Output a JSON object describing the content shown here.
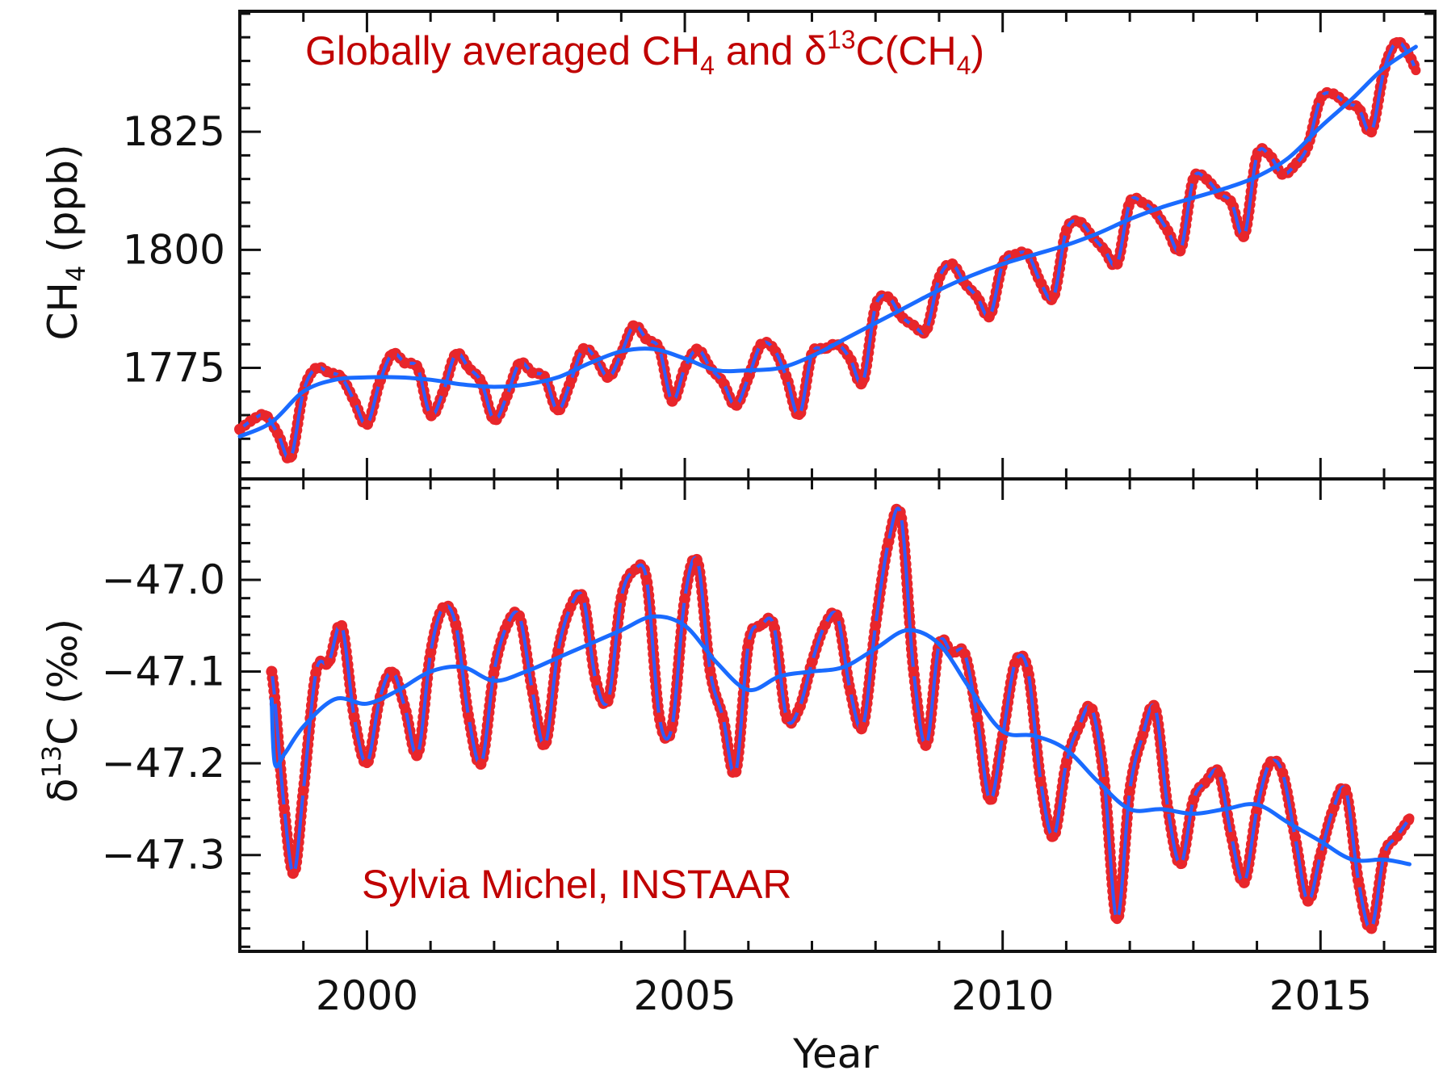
{
  "colors": {
    "observations": "#e8262b",
    "observations_line": "#2f5cff",
    "trend": "#1a6bff",
    "frame": "#111111",
    "annotation": "#c00000"
  },
  "chart_data": [
    {
      "panel": "top",
      "type": "line",
      "title": "Globally averaged CH",
      "title_parts": {
        "main": "Globally averaged CH",
        "sub1": "4",
        "mid": " and δ",
        "sup": "13",
        "mid2": "C(CH",
        "sub2": "4",
        "end": ")"
      },
      "ylabel": "CH",
      "ylabel_sub": "4",
      "ylabel_unit": " (ppb)",
      "yticks": [
        1775,
        1800,
        1825
      ],
      "ytick_labels": [
        "1775",
        "1800",
        "1825"
      ],
      "ylim": [
        1751.5,
        1850.5
      ],
      "xlim": [
        1998.0,
        2016.8
      ],
      "series": [
        {
          "role": "observations",
          "marker": "circle",
          "x": [
            1998.0,
            1998.2,
            1998.4,
            1998.6,
            1998.8,
            1999.0,
            1999.2,
            1999.4,
            1999.6,
            1999.8,
            2000.0,
            2000.2,
            2000.4,
            2000.6,
            2000.8,
            2001.0,
            2001.2,
            2001.4,
            2001.6,
            2001.8,
            2002.0,
            2002.2,
            2002.4,
            2002.6,
            2002.8,
            2003.0,
            2003.2,
            2003.4,
            2003.6,
            2003.8,
            2004.0,
            2004.2,
            2004.4,
            2004.6,
            2004.8,
            2005.0,
            2005.2,
            2005.4,
            2005.6,
            2005.8,
            2006.0,
            2006.2,
            2006.4,
            2006.6,
            2006.8,
            2007.0,
            2007.2,
            2007.4,
            2007.6,
            2007.8,
            2008.0,
            2008.2,
            2008.4,
            2008.6,
            2008.8,
            2009.0,
            2009.2,
            2009.4,
            2009.6,
            2009.8,
            2010.0,
            2010.2,
            2010.4,
            2010.6,
            2010.8,
            2011.0,
            2011.2,
            2011.4,
            2011.6,
            2011.8,
            2012.0,
            2012.2,
            2012.4,
            2012.6,
            2012.8,
            2013.0,
            2013.2,
            2013.4,
            2013.6,
            2013.8,
            2014.0,
            2014.2,
            2014.4,
            2014.6,
            2014.8,
            2015.0,
            2015.2,
            2015.4,
            2015.6,
            2015.8,
            2016.0,
            2016.2,
            2016.4,
            2016.5
          ],
          "y": [
            1762,
            1764,
            1765,
            1761,
            1756,
            1770,
            1775,
            1774,
            1773,
            1768,
            1763,
            1772,
            1778,
            1776,
            1775,
            1765,
            1770,
            1778,
            1775,
            1772,
            1764,
            1769,
            1776,
            1774,
            1773,
            1766,
            1772,
            1779,
            1777,
            1773,
            1778,
            1784,
            1781,
            1779,
            1768,
            1775,
            1779,
            1775,
            1772,
            1767,
            1773,
            1780,
            1779,
            1773,
            1765,
            1778,
            1779,
            1780,
            1777,
            1772,
            1788,
            1790,
            1786,
            1784,
            1783,
            1794,
            1797,
            1793,
            1790,
            1786,
            1797,
            1799,
            1799,
            1793,
            1790,
            1804,
            1806,
            1803,
            1800,
            1797,
            1810,
            1810,
            1808,
            1804,
            1800,
            1815,
            1815,
            1812,
            1810,
            1803,
            1820,
            1820,
            1816,
            1818,
            1822,
            1832,
            1833,
            1831,
            1830,
            1825,
            1838,
            1844,
            1841,
            1838
          ]
        },
        {
          "role": "trend",
          "x": [
            1998.0,
            1998.5,
            1999.0,
            1999.5,
            2000.0,
            2000.5,
            2001.0,
            2001.5,
            2002.0,
            2002.5,
            2003.0,
            2003.5,
            2004.0,
            2004.5,
            2005.0,
            2005.5,
            2006.0,
            2006.5,
            2007.0,
            2007.5,
            2008.0,
            2008.5,
            2009.0,
            2009.5,
            2010.0,
            2010.5,
            2011.0,
            2011.5,
            2012.0,
            2012.5,
            2013.0,
            2013.5,
            2014.0,
            2014.5,
            2015.0,
            2015.5,
            2016.0,
            2016.5
          ],
          "y": [
            1760.5,
            1763.5,
            1770.0,
            1772.5,
            1773.0,
            1773.0,
            1772.5,
            1771.5,
            1771.0,
            1771.5,
            1773.0,
            1776.0,
            1778.5,
            1779.0,
            1777.0,
            1774.5,
            1774.5,
            1775.0,
            1777.5,
            1781.0,
            1784.5,
            1788.0,
            1791.5,
            1794.5,
            1797.0,
            1799.0,
            1801.0,
            1803.5,
            1806.5,
            1809.0,
            1811.0,
            1813.0,
            1815.5,
            1819.5,
            1826.0,
            1832.0,
            1838.5,
            1843.0
          ]
        }
      ]
    },
    {
      "panel": "bottom",
      "type": "line",
      "ylabel": "δ",
      "ylabel_sup": "13",
      "ylabel_rest": "C (‰)",
      "yticks": [
        -47.3,
        -47.2,
        -47.1,
        -47.0
      ],
      "ytick_labels": [
        "−47.3",
        "−47.2",
        "−47.1",
        "−47.0"
      ],
      "ylim": [
        -47.405,
        -46.89
      ],
      "xlim": [
        1998.0,
        2016.8
      ],
      "xticks": [
        2000,
        2005,
        2010,
        2015
      ],
      "xtick_labels": [
        "2000",
        "2005",
        "2010",
        "2015"
      ],
      "xlabel": "Year",
      "annotation": "Sylvia Michel, INSTAAR",
      "series": [
        {
          "role": "observations",
          "marker": "circle",
          "x": [
            1998.5,
            1998.55,
            1998.7,
            1998.85,
            1999.0,
            1999.2,
            1999.4,
            1999.6,
            1999.8,
            2000.0,
            2000.2,
            2000.4,
            2000.6,
            2000.8,
            2001.0,
            2001.2,
            2001.4,
            2001.6,
            2001.8,
            2002.0,
            2002.2,
            2002.4,
            2002.6,
            2002.8,
            2003.0,
            2003.2,
            2003.4,
            2003.6,
            2003.8,
            2004.0,
            2004.2,
            2004.4,
            2004.6,
            2004.8,
            2005.0,
            2005.2,
            2005.4,
            2005.6,
            2005.8,
            2006.0,
            2006.2,
            2006.4,
            2006.6,
            2006.8,
            2007.0,
            2007.2,
            2007.4,
            2007.6,
            2007.8,
            2008.0,
            2008.2,
            2008.4,
            2008.6,
            2008.8,
            2009.0,
            2009.2,
            2009.4,
            2009.6,
            2009.8,
            2010.0,
            2010.2,
            2010.4,
            2010.6,
            2010.8,
            2011.0,
            2011.2,
            2011.4,
            2011.6,
            2011.8,
            2012.0,
            2012.2,
            2012.4,
            2012.6,
            2012.8,
            2013.0,
            2013.2,
            2013.4,
            2013.6,
            2013.8,
            2014.0,
            2014.2,
            2014.4,
            2014.6,
            2014.8,
            2015.0,
            2015.2,
            2015.4,
            2015.6,
            2015.8,
            2016.0,
            2016.2,
            2016.4
          ],
          "y": [
            -47.1,
            -47.13,
            -47.25,
            -47.32,
            -47.23,
            -47.1,
            -47.09,
            -47.05,
            -47.15,
            -47.2,
            -47.13,
            -47.1,
            -47.14,
            -47.19,
            -47.08,
            -47.03,
            -47.05,
            -47.15,
            -47.2,
            -47.1,
            -47.05,
            -47.04,
            -47.12,
            -47.18,
            -47.08,
            -47.03,
            -47.02,
            -47.11,
            -47.13,
            -47.02,
            -46.99,
            -47.0,
            -47.15,
            -47.16,
            -47.02,
            -46.98,
            -47.1,
            -47.15,
            -47.21,
            -47.07,
            -47.05,
            -47.05,
            -47.15,
            -47.14,
            -47.09,
            -47.05,
            -47.04,
            -47.12,
            -47.16,
            -47.05,
            -46.96,
            -46.93,
            -47.1,
            -47.18,
            -47.07,
            -47.08,
            -47.08,
            -47.15,
            -47.24,
            -47.17,
            -47.09,
            -47.1,
            -47.22,
            -47.28,
            -47.2,
            -47.16,
            -47.14,
            -47.22,
            -47.37,
            -47.23,
            -47.17,
            -47.14,
            -47.25,
            -47.31,
            -47.24,
            -47.22,
            -47.21,
            -47.28,
            -47.33,
            -47.25,
            -47.2,
            -47.21,
            -47.28,
            -47.35,
            -47.3,
            -47.25,
            -47.23,
            -47.33,
            -47.38,
            -47.3,
            -47.28,
            -47.26
          ]
        },
        {
          "role": "trend",
          "x": [
            1998.5,
            1998.55,
            1998.7,
            1999.0,
            1999.5,
            2000.0,
            2000.5,
            2001.0,
            2001.5,
            2002.0,
            2002.5,
            2003.0,
            2003.5,
            2004.0,
            2004.5,
            2005.0,
            2005.5,
            2006.0,
            2006.5,
            2007.0,
            2007.5,
            2008.0,
            2008.5,
            2009.0,
            2009.5,
            2010.0,
            2010.5,
            2011.0,
            2011.5,
            2012.0,
            2012.5,
            2013.0,
            2013.5,
            2014.0,
            2014.5,
            2015.0,
            2015.5,
            2016.0,
            2016.4
          ],
          "y": [
            -47.13,
            -47.2,
            -47.19,
            -47.16,
            -47.13,
            -47.135,
            -47.12,
            -47.1,
            -47.095,
            -47.11,
            -47.1,
            -47.085,
            -47.07,
            -47.055,
            -47.04,
            -47.05,
            -47.09,
            -47.12,
            -47.105,
            -47.1,
            -47.095,
            -47.075,
            -47.055,
            -47.07,
            -47.12,
            -47.165,
            -47.17,
            -47.185,
            -47.22,
            -47.25,
            -47.25,
            -47.255,
            -47.25,
            -47.245,
            -47.265,
            -47.285,
            -47.305,
            -47.305,
            -47.31
          ]
        }
      ]
    }
  ]
}
